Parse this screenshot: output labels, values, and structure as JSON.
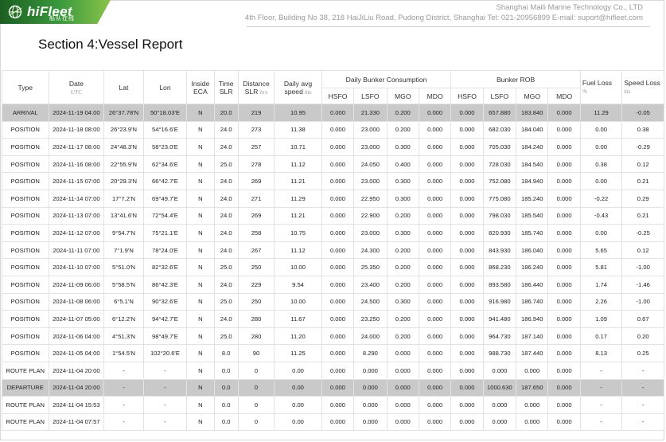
{
  "header": {
    "logo_text": "hiFleet",
    "logo_cn": "船队在线",
    "company": "Shanghai Maili Marine Technology Co., LTD",
    "address": "4th Floor, Building No 38, 218 HaiJiLiu Road, Pudong District, Shanghai Tel: 021-20956899    E-mail: suport@hifleet.com"
  },
  "section_title": "Section 4:Vessel Report",
  "columns": {
    "type": "Type",
    "date": "Date",
    "date_unit": "UTC",
    "lat": "Lat",
    "lon": "Lon",
    "inside_eca_1": "Inside",
    "inside_eca_2": "ECA",
    "time_slr_1": "Time",
    "time_slr_2": "SLR",
    "distance_slr_1": "Distance",
    "distance_slr_2": "SLR",
    "distance_unit": "hrs",
    "daily_avg_1": "Daily avg",
    "daily_avg_2": "speed",
    "daily_avg_unit": "kts",
    "daily_bunker": "Daily Bunker Consumption",
    "bunker_rob": "Bunker ROB",
    "fuel_loss": "Fuel Loss",
    "fuel_loss_unit": "%",
    "speed_loss": "Speed Loss",
    "speed_loss_unit": "kts",
    "fuels": [
      "HSFO",
      "LSFO",
      "MGO",
      "MDO"
    ]
  },
  "rows": [
    {
      "type": "ARRIVAL",
      "date": "2024-11-19 04:00",
      "lat": "26°37.78'N",
      "lon": "50°18.03'E",
      "eca": "N",
      "time": "20.0",
      "dist": "219",
      "speed": "10.95",
      "c_hsfo": "0.000",
      "c_lsfo": "21.330",
      "c_mgo": "0.200",
      "c_mdo": "0.000",
      "r_hsfo": "0.000",
      "r_lsfo": "657.880",
      "r_mgo": "183.840",
      "r_mdo": "0.000",
      "fuel_loss": "11.29",
      "speed_loss": "-0.05",
      "shade": true
    },
    {
      "type": "POSITION",
      "date": "2024-11-18 08:00",
      "lat": "26°23.9'N",
      "lon": "54°16.6'E",
      "eca": "N",
      "time": "24.0",
      "dist": "273",
      "speed": "11.38",
      "c_hsfo": "0.000",
      "c_lsfo": "23.000",
      "c_mgo": "0.200",
      "c_mdo": "0.000",
      "r_hsfo": "0.000",
      "r_lsfo": "682.030",
      "r_mgo": "184.040",
      "r_mdo": "0.000",
      "fuel_loss": "0.00",
      "speed_loss": "0.38"
    },
    {
      "type": "POSITION",
      "date": "2024-11-17 08:00",
      "lat": "24°48.3'N",
      "lon": "58°23.0'E",
      "eca": "N",
      "time": "24.0",
      "dist": "257",
      "speed": "10.71",
      "c_hsfo": "0.000",
      "c_lsfo": "23.000",
      "c_mgo": "0.300",
      "c_mdo": "0.000",
      "r_hsfo": "0.000",
      "r_lsfo": "705.030",
      "r_mgo": "184.240",
      "r_mdo": "0.000",
      "fuel_loss": "0.00",
      "speed_loss": "-0.29"
    },
    {
      "type": "POSITION",
      "date": "2024-11-16 08:00",
      "lat": "22°55.9'N",
      "lon": "62°34.6'E",
      "eca": "N",
      "time": "25.0",
      "dist": "278",
      "speed": "11.12",
      "c_hsfo": "0.000",
      "c_lsfo": "24.050",
      "c_mgo": "0.400",
      "c_mdo": "0.000",
      "r_hsfo": "0.000",
      "r_lsfo": "728.030",
      "r_mgo": "184.540",
      "r_mdo": "0.000",
      "fuel_loss": "0.38",
      "speed_loss": "0.12"
    },
    {
      "type": "POSITION",
      "date": "2024-11-15 07:00",
      "lat": "20°29.3'N",
      "lon": "66°42.7'E",
      "eca": "N",
      "time": "24.0",
      "dist": "269",
      "speed": "11.21",
      "c_hsfo": "0.000",
      "c_lsfo": "23.000",
      "c_mgo": "0.300",
      "c_mdo": "0.000",
      "r_hsfo": "0.000",
      "r_lsfo": "752.080",
      "r_mgo": "184.940",
      "r_mdo": "0.000",
      "fuel_loss": "0.00",
      "speed_loss": "0.21"
    },
    {
      "type": "POSITION",
      "date": "2024-11-14 07:00",
      "lat": "17°7.2'N",
      "lon": "69°49.7'E",
      "eca": "N",
      "time": "24.0",
      "dist": "271",
      "speed": "11.29",
      "c_hsfo": "0.000",
      "c_lsfo": "22.950",
      "c_mgo": "0.300",
      "c_mdo": "0.000",
      "r_hsfo": "0.000",
      "r_lsfo": "775.080",
      "r_mgo": "185.240",
      "r_mdo": "0.000",
      "fuel_loss": "-0.22",
      "speed_loss": "0.29"
    },
    {
      "type": "POSITION",
      "date": "2024-11-13 07:00",
      "lat": "13°41.6'N",
      "lon": "72°54.4'E",
      "eca": "N",
      "time": "24.0",
      "dist": "269",
      "speed": "11.21",
      "c_hsfo": "0.000",
      "c_lsfo": "22.900",
      "c_mgo": "0.200",
      "c_mdo": "0.000",
      "r_hsfo": "0.000",
      "r_lsfo": "798.030",
      "r_mgo": "185.540",
      "r_mdo": "0.000",
      "fuel_loss": "-0.43",
      "speed_loss": "0.21"
    },
    {
      "type": "POSITION",
      "date": "2024-11-12 07:00",
      "lat": "9°54.7'N",
      "lon": "75°21.1'E",
      "eca": "N",
      "time": "24.0",
      "dist": "258",
      "speed": "10.75",
      "c_hsfo": "0.000",
      "c_lsfo": "23.000",
      "c_mgo": "0.300",
      "c_mdo": "0.000",
      "r_hsfo": "0.000",
      "r_lsfo": "820.930",
      "r_mgo": "185.740",
      "r_mdo": "0.000",
      "fuel_loss": "0.00",
      "speed_loss": "-0.25"
    },
    {
      "type": "POSITION",
      "date": "2024-11-11 07:00",
      "lat": "7°1.9'N",
      "lon": "78°24.0'E",
      "eca": "N",
      "time": "24.0",
      "dist": "267",
      "speed": "11.12",
      "c_hsfo": "0.000",
      "c_lsfo": "24.300",
      "c_mgo": "0.200",
      "c_mdo": "0.000",
      "r_hsfo": "0.000",
      "r_lsfo": "843.930",
      "r_mgo": "186.040",
      "r_mdo": "0.000",
      "fuel_loss": "5.65",
      "speed_loss": "0.12"
    },
    {
      "type": "POSITION",
      "date": "2024-11-10 07:00",
      "lat": "5°51.0'N",
      "lon": "82°32.6'E",
      "eca": "N",
      "time": "25.0",
      "dist": "250",
      "speed": "10.00",
      "c_hsfo": "0.000",
      "c_lsfo": "25.350",
      "c_mgo": "0.200",
      "c_mdo": "0.000",
      "r_hsfo": "0.000",
      "r_lsfo": "868.230",
      "r_mgo": "186.240",
      "r_mdo": "0.000",
      "fuel_loss": "5.81",
      "speed_loss": "-1.00"
    },
    {
      "type": "POSITION",
      "date": "2024-11-09 06:00",
      "lat": "5°58.5'N",
      "lon": "86°42.3'E",
      "eca": "N",
      "time": "24.0",
      "dist": "229",
      "speed": "9.54",
      "c_hsfo": "0.000",
      "c_lsfo": "23.400",
      "c_mgo": "0.200",
      "c_mdo": "0.000",
      "r_hsfo": "0.000",
      "r_lsfo": "893.580",
      "r_mgo": "186.440",
      "r_mdo": "0.000",
      "fuel_loss": "1.74",
      "speed_loss": "-1.46"
    },
    {
      "type": "POSITION",
      "date": "2024-11-08 06:00",
      "lat": "6°5.1'N",
      "lon": "90°32.6'E",
      "eca": "N",
      "time": "25.0",
      "dist": "250",
      "speed": "10.00",
      "c_hsfo": "0.000",
      "c_lsfo": "24.500",
      "c_mgo": "0.300",
      "c_mdo": "0.000",
      "r_hsfo": "0.000",
      "r_lsfo": "916.980",
      "r_mgo": "186.740",
      "r_mdo": "0.000",
      "fuel_loss": "2.26",
      "speed_loss": "-1.00"
    },
    {
      "type": "POSITION",
      "date": "2024-11-07 05:00",
      "lat": "6°12.2'N",
      "lon": "94°42.7'E",
      "eca": "N",
      "time": "24.0",
      "dist": "280",
      "speed": "11.67",
      "c_hsfo": "0.000",
      "c_lsfo": "23.250",
      "c_mgo": "0.200",
      "c_mdo": "0.000",
      "r_hsfo": "0.000",
      "r_lsfo": "941.480",
      "r_mgo": "186.940",
      "r_mdo": "0.000",
      "fuel_loss": "1.09",
      "speed_loss": "0.67"
    },
    {
      "type": "POSITION",
      "date": "2024-11-06 04:00",
      "lat": "4°51.3'N",
      "lon": "98°49.7'E",
      "eca": "N",
      "time": "25.0",
      "dist": "280",
      "speed": "11.20",
      "c_hsfo": "0.000",
      "c_lsfo": "24.000",
      "c_mgo": "0.200",
      "c_mdo": "0.000",
      "r_hsfo": "0.000",
      "r_lsfo": "964.730",
      "r_mgo": "187.140",
      "r_mdo": "0.000",
      "fuel_loss": "0.17",
      "speed_loss": "0.20"
    },
    {
      "type": "POSITION",
      "date": "2024-11-05 04:00",
      "lat": "1°54.5'N",
      "lon": "102°20.6'E",
      "eca": "N",
      "time": "8.0",
      "dist": "90",
      "speed": "11.25",
      "c_hsfo": "0.000",
      "c_lsfo": "8.290",
      "c_mgo": "0.000",
      "c_mdo": "0.000",
      "r_hsfo": "0.000",
      "r_lsfo": "988.730",
      "r_mgo": "187.440",
      "r_mdo": "0.000",
      "fuel_loss": "8.13",
      "speed_loss": "0.25"
    },
    {
      "type": "ROUTE PLAN",
      "date": "2024-11-04 20:00",
      "lat": "-",
      "lon": "-",
      "eca": "N",
      "time": "0.0",
      "dist": "0",
      "speed": "0.00",
      "c_hsfo": "0.000",
      "c_lsfo": "0.000",
      "c_mgo": "0.000",
      "c_mdo": "0.000",
      "r_hsfo": "0.000",
      "r_lsfo": "0.000",
      "r_mgo": "0.000",
      "r_mdo": "0.000",
      "fuel_loss": "-",
      "speed_loss": "-"
    },
    {
      "type": "DEPARTURE",
      "date": "2024-11-04 20:00",
      "lat": "-",
      "lon": "-",
      "eca": "N",
      "time": "0.0",
      "dist": "0",
      "speed": "0.00",
      "c_hsfo": "0.000",
      "c_lsfo": "0.000",
      "c_mgo": "0.000",
      "c_mdo": "0.000",
      "r_hsfo": "0.000",
      "r_lsfo": "1000.630",
      "r_mgo": "187.650",
      "r_mdo": "0.000",
      "fuel_loss": "-",
      "speed_loss": "-",
      "shade": true
    },
    {
      "type": "ROUTE PLAN",
      "date": "2024-11-04 15:53",
      "lat": "-",
      "lon": "-",
      "eca": "N",
      "time": "0.0",
      "dist": "0",
      "speed": "0.00",
      "c_hsfo": "0.000",
      "c_lsfo": "0.000",
      "c_mgo": "0.000",
      "c_mdo": "0.000",
      "r_hsfo": "0.000",
      "r_lsfo": "0.000",
      "r_mgo": "0.000",
      "r_mdo": "0.000",
      "fuel_loss": "-",
      "speed_loss": "-"
    },
    {
      "type": "ROUTE PLAN",
      "date": "2024-11-04 07:57",
      "lat": "-",
      "lon": "-",
      "eca": "N",
      "time": "0.0",
      "dist": "0",
      "speed": "0.00",
      "c_hsfo": "0.000",
      "c_lsfo": "0.000",
      "c_mgo": "0.000",
      "c_mdo": "0.000",
      "r_hsfo": "0.000",
      "r_lsfo": "0.000",
      "r_mgo": "0.000",
      "r_mdo": "0.000",
      "fuel_loss": "-",
      "speed_loss": "-"
    }
  ]
}
